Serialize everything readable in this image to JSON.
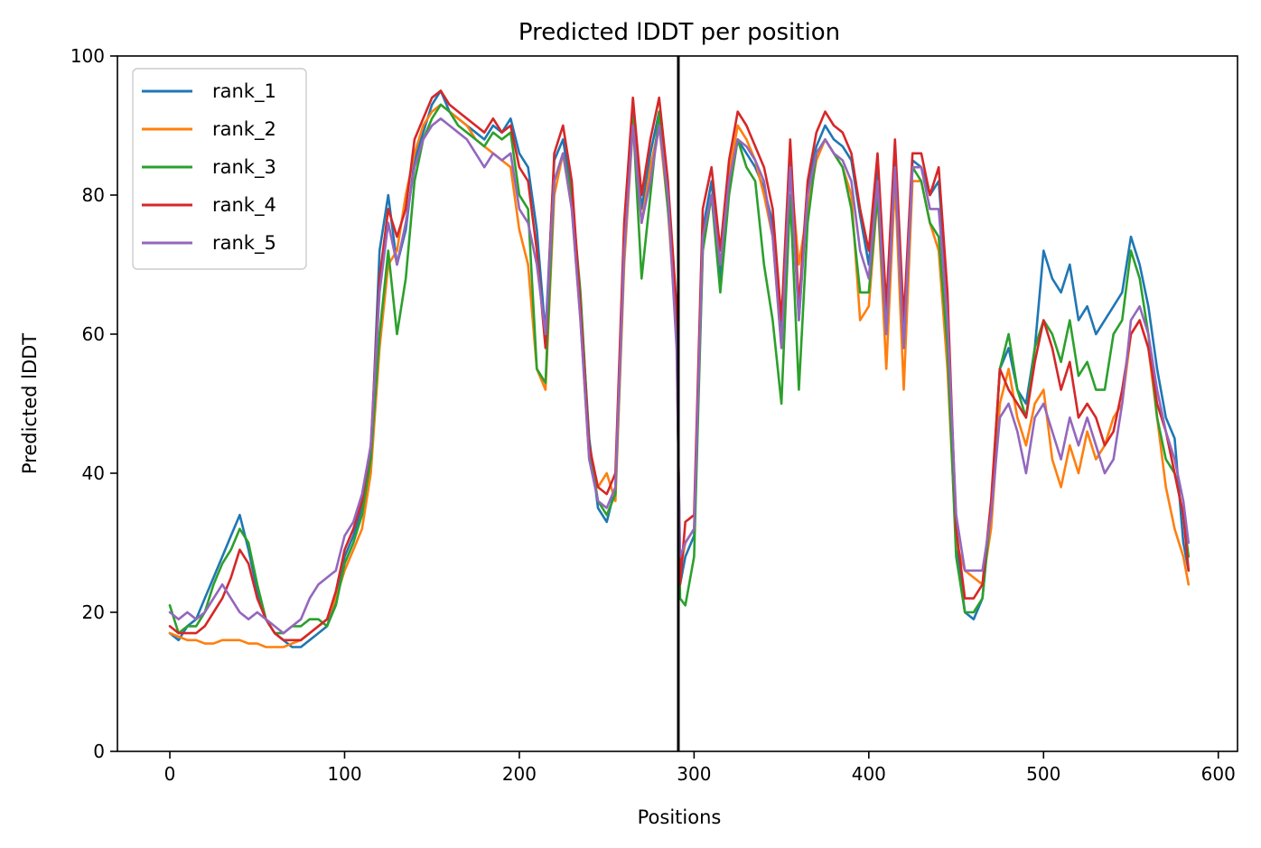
{
  "chart_data": {
    "type": "line",
    "title": "Predicted lDDT per position",
    "xlabel": "Positions",
    "ylabel": "Predicted lDDT",
    "xlim": [
      -30,
      611
    ],
    "ylim": [
      0,
      100
    ],
    "xticks": [
      0,
      100,
      200,
      300,
      400,
      500,
      600
    ],
    "yticks": [
      0,
      20,
      40,
      60,
      80,
      100
    ],
    "grid": false,
    "legend_position": "top-left",
    "vline_x": 291,
    "series": [
      {
        "name": "rank_1",
        "color": "#1f77b4",
        "x": [
          0,
          5,
          10,
          15,
          20,
          25,
          30,
          35,
          40,
          45,
          50,
          55,
          60,
          65,
          70,
          75,
          80,
          85,
          90,
          95,
          100,
          105,
          110,
          115,
          120,
          125,
          130,
          135,
          140,
          145,
          150,
          155,
          160,
          165,
          170,
          175,
          180,
          185,
          190,
          195,
          200,
          205,
          210,
          215,
          220,
          225,
          230,
          235,
          240,
          245,
          250,
          255,
          260,
          265,
          270,
          275,
          280,
          285,
          290,
          292,
          295,
          300,
          305,
          310,
          315,
          320,
          325,
          330,
          335,
          340,
          345,
          350,
          355,
          360,
          365,
          370,
          375,
          380,
          385,
          390,
          395,
          400,
          405,
          410,
          415,
          420,
          425,
          430,
          435,
          440,
          445,
          450,
          455,
          460,
          465,
          470,
          475,
          480,
          485,
          490,
          495,
          500,
          505,
          510,
          515,
          520,
          525,
          530,
          535,
          540,
          545,
          550,
          555,
          560,
          565,
          570,
          575,
          580,
          583
        ],
        "y": [
          17,
          16,
          18,
          19,
          22,
          25,
          28,
          31,
          34,
          29,
          23,
          19,
          17,
          16,
          15,
          15,
          16,
          17,
          18,
          22,
          28,
          31,
          35,
          42,
          72,
          80,
          70,
          75,
          85,
          89,
          93,
          95,
          92,
          91,
          90,
          89,
          88,
          90,
          89,
          91,
          86,
          84,
          75,
          60,
          85,
          88,
          80,
          65,
          45,
          35,
          33,
          38,
          75,
          92,
          78,
          86,
          92,
          80,
          62,
          24,
          28,
          31,
          75,
          82,
          68,
          82,
          88,
          86,
          84,
          81,
          76,
          60,
          86,
          62,
          81,
          87,
          90,
          88,
          87,
          85,
          77,
          70,
          84,
          62,
          86,
          60,
          85,
          84,
          80,
          82,
          65,
          30,
          20,
          19,
          22,
          35,
          55,
          58,
          52,
          50,
          58,
          72,
          68,
          66,
          70,
          62,
          64,
          60,
          62,
          64,
          66,
          74,
          70,
          64,
          55,
          48,
          45,
          30,
          26
        ]
      },
      {
        "name": "rank_2",
        "color": "#ff7f0e",
        "x": [
          0,
          5,
          10,
          15,
          20,
          25,
          30,
          35,
          40,
          45,
          50,
          55,
          60,
          65,
          70,
          75,
          80,
          85,
          90,
          95,
          100,
          105,
          110,
          115,
          120,
          125,
          130,
          135,
          140,
          145,
          150,
          155,
          160,
          165,
          170,
          175,
          180,
          185,
          190,
          195,
          200,
          205,
          210,
          215,
          220,
          225,
          230,
          235,
          240,
          245,
          250,
          255,
          260,
          265,
          270,
          275,
          280,
          285,
          290,
          292,
          295,
          300,
          305,
          310,
          315,
          320,
          325,
          330,
          335,
          340,
          345,
          350,
          355,
          360,
          365,
          370,
          375,
          380,
          385,
          390,
          395,
          400,
          405,
          410,
          415,
          420,
          425,
          430,
          435,
          440,
          445,
          450,
          455,
          460,
          465,
          470,
          475,
          480,
          485,
          490,
          495,
          500,
          505,
          510,
          515,
          520,
          525,
          530,
          535,
          540,
          545,
          550,
          555,
          560,
          565,
          570,
          575,
          580,
          583
        ],
        "y": [
          17,
          16.5,
          16,
          16,
          15.5,
          15.5,
          16,
          16,
          16,
          15.5,
          15.5,
          15,
          15,
          15,
          15.5,
          16,
          17,
          18,
          19,
          22,
          26,
          29,
          32,
          40,
          58,
          70,
          72,
          80,
          86,
          90,
          92,
          93,
          92,
          91,
          90,
          88,
          87,
          86,
          85,
          84,
          75,
          70,
          55,
          52,
          80,
          86,
          78,
          62,
          42,
          38,
          40,
          36,
          70,
          90,
          76,
          84,
          90,
          78,
          60,
          26,
          30,
          32,
          72,
          80,
          70,
          83,
          90,
          88,
          85,
          80,
          74,
          58,
          84,
          70,
          78,
          85,
          88,
          86,
          84,
          80,
          62,
          64,
          80,
          55,
          82,
          52,
          82,
          82,
          76,
          72,
          55,
          30,
          26,
          25,
          24,
          32,
          50,
          55,
          48,
          44,
          50,
          52,
          42,
          38,
          44,
          40,
          46,
          42,
          44,
          48,
          50,
          60,
          62,
          58,
          48,
          38,
          32,
          28,
          24
        ]
      },
      {
        "name": "rank_3",
        "color": "#2ca02c",
        "x": [
          0,
          5,
          10,
          15,
          20,
          25,
          30,
          35,
          40,
          45,
          50,
          55,
          60,
          65,
          70,
          75,
          80,
          85,
          90,
          95,
          100,
          105,
          110,
          115,
          120,
          125,
          130,
          135,
          140,
          145,
          150,
          155,
          160,
          165,
          170,
          175,
          180,
          185,
          190,
          195,
          200,
          205,
          210,
          215,
          220,
          225,
          230,
          235,
          240,
          245,
          250,
          255,
          260,
          265,
          270,
          275,
          280,
          285,
          290,
          292,
          295,
          300,
          305,
          310,
          315,
          320,
          325,
          330,
          335,
          340,
          345,
          350,
          355,
          360,
          365,
          370,
          375,
          380,
          385,
          390,
          395,
          400,
          405,
          410,
          415,
          420,
          425,
          430,
          435,
          440,
          445,
          450,
          455,
          460,
          465,
          470,
          475,
          480,
          485,
          490,
          495,
          500,
          505,
          510,
          515,
          520,
          525,
          530,
          535,
          540,
          545,
          550,
          555,
          560,
          565,
          570,
          575,
          580,
          583
        ],
        "y": [
          21,
          17,
          18,
          18,
          20,
          24,
          27,
          29,
          32,
          30,
          24,
          19,
          17,
          17,
          18,
          18,
          19,
          19,
          18,
          21,
          27,
          30,
          34,
          42,
          60,
          72,
          60,
          68,
          82,
          88,
          91,
          93,
          92,
          90,
          89,
          88,
          87,
          89,
          88,
          89,
          80,
          78,
          55,
          53,
          82,
          86,
          80,
          66,
          44,
          36,
          34,
          37,
          72,
          91,
          68,
          80,
          92,
          78,
          64,
          22,
          21,
          28,
          72,
          80,
          66,
          80,
          88,
          84,
          82,
          70,
          62,
          50,
          80,
          52,
          76,
          86,
          88,
          86,
          84,
          78,
          66,
          66,
          80,
          60,
          84,
          58,
          84,
          82,
          76,
          74,
          58,
          28,
          20,
          20,
          22,
          35,
          55,
          60,
          52,
          48,
          58,
          62,
          60,
          56,
          62,
          54,
          56,
          52,
          52,
          60,
          62,
          72,
          68,
          60,
          48,
          42,
          40,
          34,
          28
        ]
      },
      {
        "name": "rank_4",
        "color": "#d62728",
        "x": [
          0,
          5,
          10,
          15,
          20,
          25,
          30,
          35,
          40,
          45,
          50,
          55,
          60,
          65,
          70,
          75,
          80,
          85,
          90,
          95,
          100,
          105,
          110,
          115,
          120,
          125,
          130,
          135,
          140,
          145,
          150,
          155,
          160,
          165,
          170,
          175,
          180,
          185,
          190,
          195,
          200,
          205,
          210,
          215,
          220,
          225,
          230,
          235,
          240,
          245,
          250,
          255,
          260,
          265,
          270,
          275,
          280,
          285,
          290,
          292,
          295,
          300,
          305,
          310,
          315,
          320,
          325,
          330,
          335,
          340,
          345,
          350,
          355,
          360,
          365,
          370,
          375,
          380,
          385,
          390,
          395,
          400,
          405,
          410,
          415,
          420,
          425,
          430,
          435,
          440,
          445,
          450,
          455,
          460,
          465,
          470,
          475,
          480,
          485,
          490,
          495,
          500,
          505,
          510,
          515,
          520,
          525,
          530,
          535,
          540,
          545,
          550,
          555,
          560,
          565,
          570,
          575,
          580,
          583
        ],
        "y": [
          18,
          17,
          17,
          17,
          18,
          20,
          22,
          25,
          29,
          27,
          22,
          19,
          17,
          16,
          16,
          16,
          17,
          18,
          19,
          23,
          29,
          32,
          36,
          44,
          68,
          78,
          74,
          78,
          88,
          91,
          94,
          95,
          93,
          92,
          91,
          90,
          89,
          91,
          89,
          90,
          84,
          82,
          72,
          58,
          86,
          90,
          82,
          64,
          44,
          38,
          37,
          40,
          76,
          94,
          80,
          88,
          94,
          82,
          64,
          24,
          33,
          34,
          78,
          84,
          72,
          85,
          92,
          90,
          87,
          84,
          78,
          62,
          88,
          64,
          82,
          89,
          92,
          90,
          89,
          86,
          78,
          72,
          86,
          64,
          88,
          62,
          86,
          86,
          80,
          84,
          66,
          32,
          22,
          22,
          24,
          36,
          55,
          52,
          50,
          48,
          56,
          62,
          58,
          52,
          56,
          48,
          50,
          48,
          44,
          46,
          52,
          60,
          62,
          58,
          50,
          46,
          40,
          34,
          26
        ]
      },
      {
        "name": "rank_5",
        "color": "#9467bd",
        "x": [
          0,
          5,
          10,
          15,
          20,
          25,
          30,
          35,
          40,
          45,
          50,
          55,
          60,
          65,
          70,
          75,
          80,
          85,
          90,
          95,
          100,
          105,
          110,
          115,
          120,
          125,
          130,
          135,
          140,
          145,
          150,
          155,
          160,
          165,
          170,
          175,
          180,
          185,
          190,
          195,
          200,
          205,
          210,
          215,
          220,
          225,
          230,
          235,
          240,
          245,
          250,
          255,
          260,
          265,
          270,
          275,
          280,
          285,
          290,
          292,
          295,
          300,
          305,
          310,
          315,
          320,
          325,
          330,
          335,
          340,
          345,
          350,
          355,
          360,
          365,
          370,
          375,
          380,
          385,
          390,
          395,
          400,
          405,
          410,
          415,
          420,
          425,
          430,
          435,
          440,
          445,
          450,
          455,
          460,
          465,
          470,
          475,
          480,
          485,
          490,
          495,
          500,
          505,
          510,
          515,
          520,
          525,
          530,
          535,
          540,
          545,
          550,
          555,
          560,
          565,
          570,
          575,
          580,
          583
        ],
        "y": [
          20,
          19,
          20,
          19,
          20,
          22,
          24,
          22,
          20,
          19,
          20,
          19,
          18,
          17,
          18,
          19,
          22,
          24,
          25,
          26,
          31,
          33,
          37,
          44,
          66,
          76,
          70,
          76,
          84,
          88,
          90,
          91,
          90,
          89,
          88,
          86,
          84,
          86,
          85,
          86,
          78,
          76,
          70,
          60,
          82,
          86,
          78,
          62,
          42,
          36,
          35,
          38,
          72,
          90,
          76,
          82,
          90,
          80,
          58,
          28,
          30,
          32,
          74,
          80,
          70,
          82,
          88,
          87,
          85,
          82,
          74,
          58,
          84,
          62,
          80,
          86,
          88,
          86,
          85,
          82,
          72,
          68,
          82,
          60,
          84,
          58,
          84,
          84,
          78,
          78,
          62,
          34,
          26,
          26,
          26,
          34,
          48,
          50,
          46,
          40,
          48,
          50,
          46,
          42,
          48,
          44,
          48,
          44,
          40,
          42,
          50,
          62,
          64,
          60,
          52,
          46,
          42,
          36,
          30
        ]
      }
    ]
  }
}
